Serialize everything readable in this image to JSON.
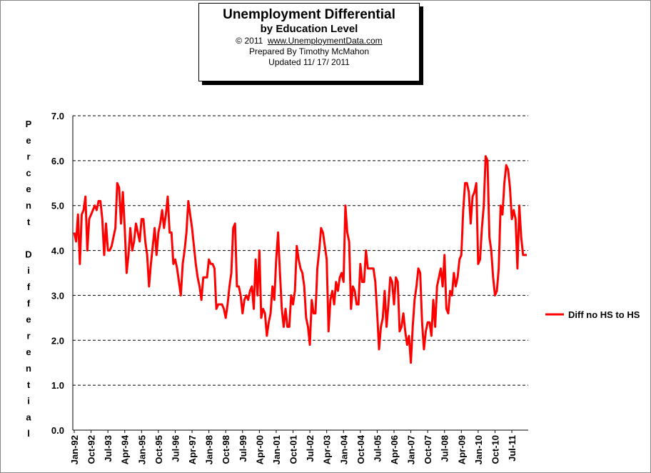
{
  "header": {
    "title": "Unemployment Differential",
    "subtitle": "by Education Level",
    "copyright": "© 2011",
    "url": "www.UnemploymentData.com",
    "prepared_by": "Prepared By Timothy McMahon",
    "updated": "Updated 11/ 17/ 2011"
  },
  "chart_data": {
    "type": "line",
    "title": "Unemployment Differential",
    "subtitle": "by Education Level",
    "ylabel": "Percent Differential",
    "ylim": [
      0,
      7
    ],
    "yticks": [
      "0.0",
      "1.0",
      "2.0",
      "3.0",
      "4.0",
      "5.0",
      "6.0",
      "7.0"
    ],
    "x_start": "Jan-92",
    "x_end": "Nov-11",
    "xtick_labels": [
      "Jan-92",
      "Oct-92",
      "Jul-93",
      "Apr-94",
      "Jan-95",
      "Oct-95",
      "Jul-96",
      "Apr-97",
      "Jan-98",
      "Oct-98",
      "Jul-99",
      "Apr-00",
      "Jan-01",
      "Oct-01",
      "Jul-02",
      "Apr-03",
      "Jan-04",
      "Oct-04",
      "Jul-05",
      "Apr-06",
      "Jan-07",
      "Oct-07",
      "Jul-08",
      "Apr-09",
      "Jan-10",
      "Oct-10",
      "Jul-11"
    ],
    "grid": "horizontal dashed",
    "legend_position": "right",
    "series": [
      {
        "name": "Diff no HS to HS",
        "color": "#ff0000",
        "values": [
          4.4,
          4.2,
          4.8,
          3.7,
          4.8,
          4.9,
          5.2,
          4.0,
          4.7,
          4.8,
          4.9,
          5.0,
          4.9,
          5.1,
          5.1,
          4.7,
          3.9,
          4.6,
          4.0,
          4.0,
          4.1,
          4.3,
          4.5,
          5.5,
          5.4,
          4.6,
          5.3,
          4.5,
          3.5,
          3.9,
          4.5,
          4.0,
          4.2,
          4.6,
          4.4,
          4.2,
          4.7,
          4.7,
          4.2,
          3.9,
          3.2,
          3.7,
          4.1,
          4.5,
          3.9,
          4.4,
          4.6,
          4.9,
          4.5,
          4.8,
          5.2,
          4.4,
          4.4,
          3.7,
          3.8,
          3.6,
          3.3,
          3.0,
          3.7,
          4.0,
          4.4,
          5.1,
          4.8,
          4.5,
          4.1,
          3.7,
          3.4,
          3.2,
          2.9,
          3.4,
          3.4,
          3.4,
          3.8,
          3.7,
          3.7,
          3.6,
          2.7,
          2.8,
          2.8,
          2.8,
          2.7,
          2.5,
          2.8,
          3.2,
          3.5,
          4.5,
          4.6,
          3.2,
          3.2,
          3.0,
          2.6,
          2.9,
          3.0,
          2.9,
          3.1,
          3.2,
          2.7,
          3.8,
          3.0,
          4.0,
          2.5,
          2.7,
          2.6,
          2.1,
          2.4,
          2.6,
          3.2,
          2.9,
          3.8,
          4.4,
          3.5,
          2.7,
          2.3,
          2.7,
          2.3,
          2.3,
          3.0,
          2.8,
          3.1,
          4.1,
          3.8,
          3.6,
          3.5,
          3.2,
          2.5,
          2.3,
          1.9,
          2.9,
          2.6,
          2.6,
          3.6,
          4.0,
          4.5,
          4.4,
          4.1,
          3.8,
          2.2,
          2.9,
          3.1,
          2.8,
          3.3,
          3.1,
          3.4,
          3.5,
          3.3,
          5.0,
          4.4,
          4.2,
          2.7,
          3.2,
          3.1,
          2.8,
          2.8,
          3.7,
          3.3,
          3.3,
          4.0,
          3.6,
          3.6,
          3.6,
          3.6,
          3.3,
          2.6,
          1.8,
          2.3,
          2.5,
          3.1,
          2.3,
          2.8,
          3.4,
          3.3,
          2.8,
          3.4,
          3.3,
          2.2,
          2.3,
          2.6,
          2.2,
          1.9,
          2.1,
          1.5,
          2.3,
          2.9,
          3.2,
          3.6,
          3.5,
          2.4,
          1.8,
          2.2,
          2.4,
          2.4,
          2.1,
          2.9,
          2.3,
          3.2,
          3.4,
          3.6,
          3.2,
          3.9,
          2.7,
          2.6,
          3.1,
          3.0,
          3.5,
          3.2,
          3.4,
          3.8,
          3.9,
          4.9,
          5.5,
          5.5,
          5.3,
          4.6,
          5.2,
          5.3,
          5.5,
          3.7,
          3.8,
          4.5,
          5.0,
          6.1,
          6.0,
          4.3,
          4.0,
          3.4,
          3.0,
          3.1,
          3.6,
          5.0,
          4.8,
          5.5,
          5.9,
          5.8,
          5.4,
          4.7,
          4.9,
          4.7,
          3.6,
          5.0,
          4.3,
          3.9,
          3.9,
          3.9
        ]
      }
    ]
  }
}
